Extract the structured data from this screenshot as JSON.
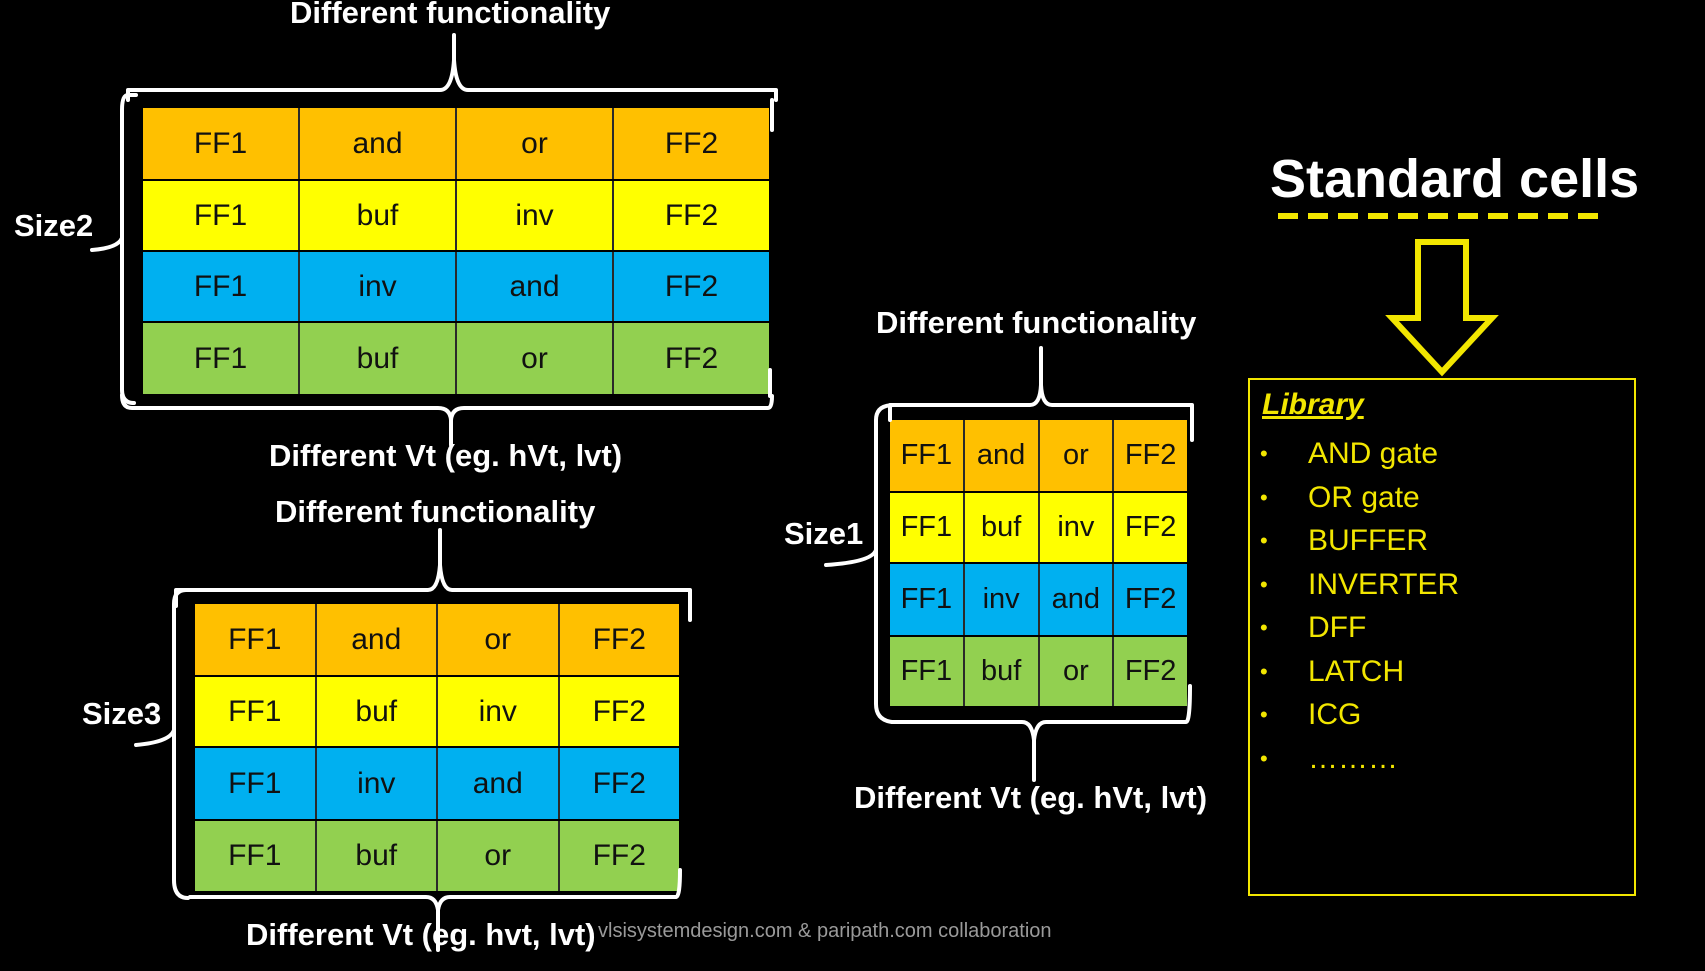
{
  "labels": {
    "func_top": "Different functionality",
    "vt_top": "Different Vt (eg. hVt, lvt)",
    "func_left_bottom": "Different functionality",
    "vt_left_bottom": "Different Vt (eg. hvt, lvt)",
    "func_right": "Different functionality",
    "vt_right": "Different Vt (eg. hVt, lvt)"
  },
  "sizes": {
    "size2": "Size2",
    "size3": "Size3",
    "size1": "Size1"
  },
  "colors": {
    "orange": "#FFC000",
    "yellow": "#FFFF00",
    "blue": "#00B0F0",
    "green": "#92D050",
    "library_yellow": "#F2E600"
  },
  "grids": {
    "size2": [
      [
        "FF1",
        "and",
        "or",
        "FF2"
      ],
      [
        "FF1",
        "buf",
        "inv",
        "FF2"
      ],
      [
        "FF1",
        "inv",
        "and",
        "FF2"
      ],
      [
        "FF1",
        "buf",
        "or",
        "FF2"
      ]
    ],
    "size3": [
      [
        "FF1",
        "and",
        "or",
        "FF2"
      ],
      [
        "FF1",
        "buf",
        "inv",
        "FF2"
      ],
      [
        "FF1",
        "inv",
        "and",
        "FF2"
      ],
      [
        "FF1",
        "buf",
        "or",
        "FF2"
      ]
    ],
    "size1": [
      [
        "FF1",
        "and",
        "or",
        "FF2"
      ],
      [
        "FF1",
        "buf",
        "inv",
        "FF2"
      ],
      [
        "FF1",
        "inv",
        "and",
        "FF2"
      ],
      [
        "FF1",
        "buf",
        "or",
        "FF2"
      ]
    ]
  },
  "title": "Standard cells",
  "library": {
    "heading": "Library",
    "bullet_icon": "bullet-dot",
    "items": [
      "AND gate",
      "OR gate",
      "BUFFER",
      "INVERTER",
      "DFF",
      "LATCH",
      "ICG",
      "………"
    ]
  },
  "footer": "vlsisystemdesign.com & paripath.com collaboration"
}
